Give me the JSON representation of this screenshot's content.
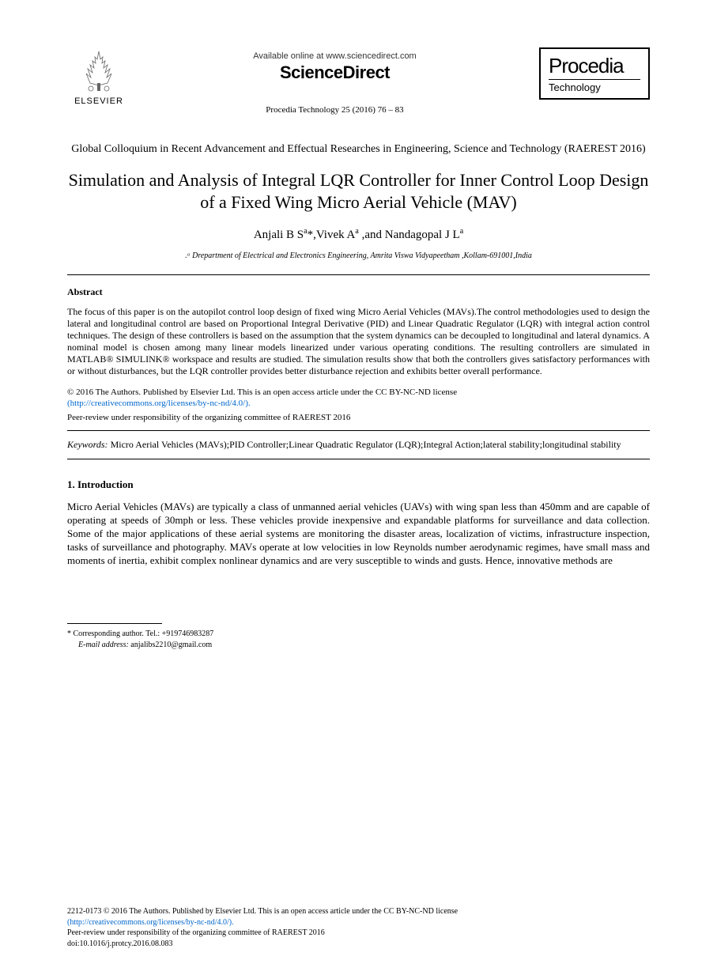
{
  "header": {
    "elsevier_label": "ELSEVIER",
    "available_online": "Available online at www.sciencedirect.com",
    "sciencedirect": "ScienceDirect",
    "citation": "Procedia Technology 25 (2016) 76 – 83",
    "procedia_title": "Procedia",
    "procedia_sub": "Technology"
  },
  "conference": "Global Colloquium in Recent Advancement and Effectual Researches in Engineering, Science and Technology (RAEREST 2016)",
  "title": "Simulation and Analysis of Integral LQR Controller for Inner Control Loop Design of a Fixed Wing Micro Aerial Vehicle (MAV)",
  "authors_html": "Anjali B S<sup>a</sup>*,Vivek A<sup>a</sup> ,and Nandagopal J L<sup>a</sup>",
  "affiliation": ".ᵃ Drepartment of Electrical and Electronics Engineering, Amrita Viswa Vidyapeetham ,Kollam-691001,India",
  "abstract_label": "Abstract",
  "abstract_body": "The focus of this paper is on the autopilot control loop design of fixed wing Micro Aerial Vehicles (MAVs).The control methodologies used to design the lateral and longitudinal control are based on Proportional Integral Derivative (PID) and Linear Quadratic Regulator (LQR) with integral action control techniques. The design of these controllers is based on the assumption that the system dynamics can be decoupled to longitudinal and lateral dynamics. A nominal model is chosen among many linear models linearized under various operating conditions. The resulting controllers are simulated in MATLAB® SIMULINK® workspace and results are studied. The simulation results show that both the controllers gives satisfactory performances with or without disturbances, but the LQR controller provides better disturbance rejection and exhibits better overall performance.",
  "license_line1": "© 2016 The Authors. Published by Elsevier Ltd. This is an open access article under the CC BY-NC-ND license",
  "license_link": "(http://creativecommons.org/licenses/by-nc-nd/4.0/).",
  "peer_review": "Peer-review under responsibility of the organizing committee of RAEREST 2016",
  "keywords_label": "Keywords:",
  "keywords_body": " Micro Aerial Vehicles (MAVs);PID Controller;Linear Quadratic Regulator (LQR);Integral Action;lateral stability;longitudinal stability",
  "intro_head": "1. Introduction",
  "intro_body": "Micro Aerial Vehicles (MAVs) are typically a class of unmanned aerial vehicles (UAVs) with wing span less than 450mm and are capable of operating at speeds of 30mph or less. These vehicles provide inexpensive and expandable platforms for surveillance and data collection. Some of the major applications of these aerial systems are monitoring the disaster areas, localization of victims, infrastructure inspection, tasks of surveillance and photography. MAVs operate at low velocities in low Reynolds number aerodynamic regimes, have small mass and moments of inertia, exhibit complex nonlinear dynamics and are very susceptible to winds and gusts. Hence, innovative methods are",
  "footnote_corr": "* Corresponding author. Tel.: +919746983287",
  "footnote_email_label": "E-mail address:",
  "footnote_email": " anjalibs2210@gmail.com",
  "footer": {
    "issn": "2212-0173 © 2016 The Authors. Published by Elsevier Ltd. This is an open access article under the CC BY-NC-ND license",
    "link": "(http://creativecommons.org/licenses/by-nc-nd/4.0/).",
    "peer": "Peer-review under responsibility of the organizing committee of RAEREST 2016",
    "doi": "doi:10.1016/j.protcy.2016.08.083"
  },
  "colors": {
    "text": "#000000",
    "link": "#0066cc",
    "background": "#ffffff",
    "rule": "#000000"
  },
  "typography": {
    "title_fontsize": 22,
    "body_fontsize": 12,
    "intro_fontsize": 13,
    "footnote_fontsize": 10,
    "font_family": "Times New Roman"
  }
}
